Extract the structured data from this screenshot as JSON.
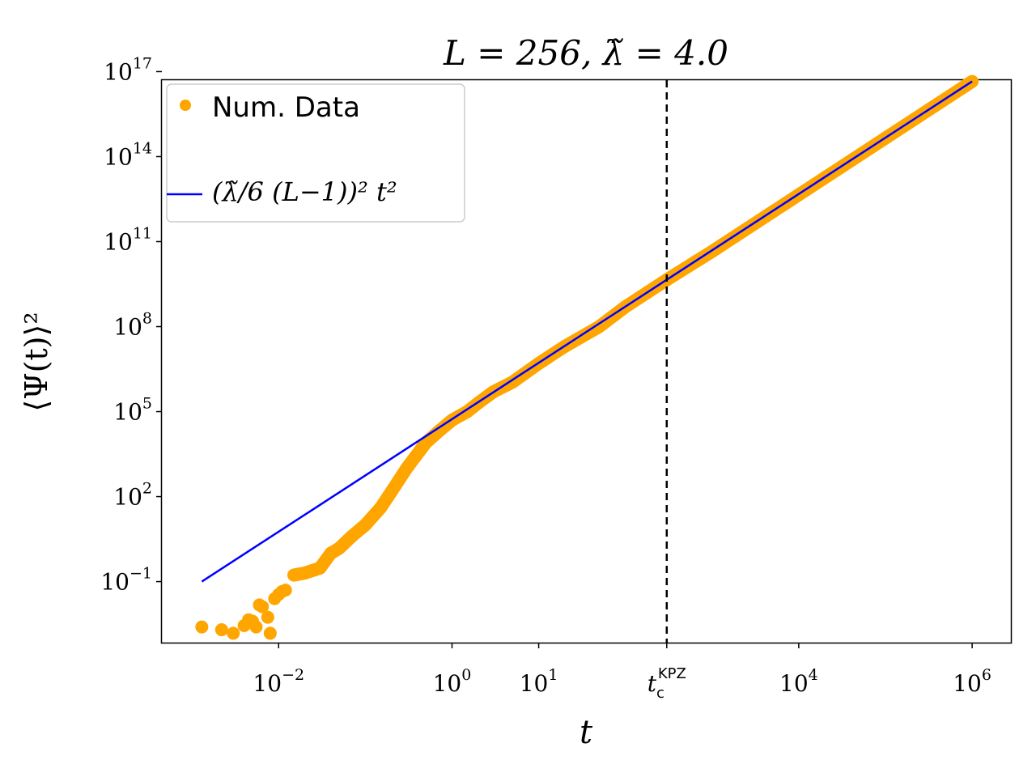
{
  "chart_data": {
    "type": "scatter",
    "title": "L = 256, λ̃ = 4.0",
    "xlabel": "t",
    "ylabel": "⟨Ψ(t)⟩²",
    "xscale": "log",
    "yscale": "log",
    "xlim": [
      0.00045,
      2800000
    ],
    "ylim": [
      0.0007,
      50000000000000000
    ],
    "x_ticks": [
      {
        "value": 0.01,
        "base": "10",
        "exp": "−2"
      },
      {
        "value": 1,
        "base": "10",
        "exp": "0"
      },
      {
        "value": 10,
        "base": "10",
        "exp": "1"
      },
      {
        "value": 10000,
        "base": "10",
        "exp": "4"
      },
      {
        "value": 1000000,
        "base": "10",
        "exp": "6"
      }
    ],
    "special_x_tick": {
      "value": 300,
      "base": "t",
      "sub": "c",
      "sup": "KPZ"
    },
    "y_ticks": [
      {
        "value": 0.1,
        "base": "10",
        "exp": "−1"
      },
      {
        "value": 100,
        "base": "10",
        "exp": "2"
      },
      {
        "value": 100000,
        "base": "10",
        "exp": "5"
      },
      {
        "value": 100000000,
        "base": "10",
        "exp": "8"
      },
      {
        "value": 100000000000,
        "base": "10",
        "exp": "11"
      },
      {
        "value": 100000000000000,
        "base": "10",
        "exp": "14"
      },
      {
        "value": 100000000000000000,
        "base": "10",
        "exp": "17"
      }
    ],
    "vline": {
      "x": 300,
      "style": "dashed",
      "color": "#000000"
    },
    "legend_position": "top-left",
    "series": [
      {
        "name": "Num. Data",
        "kind": "scatter",
        "color": "#FFA500",
        "x": [
          0.0013,
          0.0055,
          0.0022,
          0.003,
          0.004,
          0.0045,
          0.005,
          0.006,
          0.0065,
          0.0075,
          0.008,
          0.009,
          0.01,
          0.011,
          0.012,
          0.015,
          0.02,
          0.025,
          0.03,
          0.04,
          0.05,
          0.07,
          0.1,
          0.15,
          0.2,
          0.3,
          0.5,
          0.7,
          1,
          1.5,
          2,
          3,
          5,
          10,
          20,
          50,
          100,
          300,
          1000,
          10000,
          100000,
          1000000
        ],
        "y": [
          0.0025,
          0.0025,
          0.002,
          0.0015,
          0.0028,
          0.0045,
          0.004,
          0.015,
          0.013,
          0.0055,
          0.0015,
          0.025,
          0.035,
          0.045,
          0.05,
          0.17,
          0.2,
          0.25,
          0.3,
          1.0,
          1.5,
          4,
          10,
          40,
          150,
          1000,
          8000,
          20000,
          50000,
          100000,
          200000,
          500000,
          1100000,
          5000000,
          20000000,
          100000000,
          500000000,
          4500000000,
          45000000000,
          4500000000000,
          450000000000000,
          45000000000000000
        ]
      },
      {
        "name": "(λ̃/6 (L−1))² t²",
        "kind": "line",
        "color": "#0000FF",
        "x": [
          0.0013,
          1000000
        ],
        "y": [
          0.1,
          45000000000000000
        ]
      }
    ]
  }
}
